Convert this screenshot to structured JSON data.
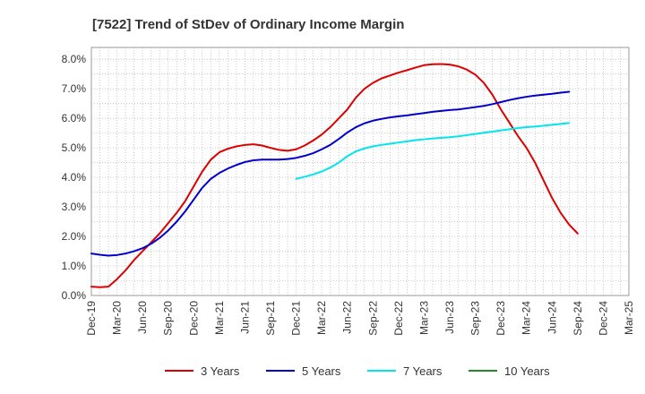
{
  "chart_data": {
    "type": "line",
    "title": "[7522]  Trend of StDev of Ordinary Income Margin",
    "xlabel": "",
    "ylabel": "",
    "x_tick_labels": [
      "Dec-19",
      "Mar-20",
      "Jun-20",
      "Sep-20",
      "Dec-20",
      "Mar-21",
      "Jun-21",
      "Sep-21",
      "Dec-21",
      "Mar-22",
      "Jun-22",
      "Sep-22",
      "Dec-22",
      "Mar-23",
      "Jun-23",
      "Sep-23",
      "Dec-23",
      "Mar-24",
      "Jun-24",
      "Sep-24",
      "Dec-24",
      "Mar-25"
    ],
    "y_tick_labels": [
      "0.0%",
      "1.0%",
      "2.0%",
      "3.0%",
      "4.0%",
      "5.0%",
      "6.0%",
      "7.0%",
      "8.0%"
    ],
    "ylim": [
      0,
      8.4
    ],
    "y_unit": "%",
    "grid": true,
    "legend_position": "bottom",
    "series": [
      {
        "name": "3 Years",
        "color": "#dd0000",
        "points": [
          [
            "Dec-19",
            0.3
          ],
          [
            "Jan-20",
            0.28
          ],
          [
            "Feb-20",
            0.3
          ],
          [
            "Mar-20",
            0.55
          ],
          [
            "Apr-20",
            0.85
          ],
          [
            "May-20",
            1.2
          ],
          [
            "Jun-20",
            1.5
          ],
          [
            "Jul-20",
            1.8
          ],
          [
            "Aug-20",
            2.1
          ],
          [
            "Sep-20",
            2.45
          ],
          [
            "Oct-20",
            2.8
          ],
          [
            "Nov-20",
            3.2
          ],
          [
            "Dec-20",
            3.7
          ],
          [
            "Jan-21",
            4.2
          ],
          [
            "Feb-21",
            4.6
          ],
          [
            "Mar-21",
            4.85
          ],
          [
            "Apr-21",
            4.97
          ],
          [
            "May-21",
            5.05
          ],
          [
            "Jun-21",
            5.1
          ],
          [
            "Jul-21",
            5.12
          ],
          [
            "Aug-21",
            5.08
          ],
          [
            "Sep-21",
            5.0
          ],
          [
            "Oct-21",
            4.93
          ],
          [
            "Nov-21",
            4.9
          ],
          [
            "Dec-21",
            4.95
          ],
          [
            "Jan-22",
            5.08
          ],
          [
            "Feb-22",
            5.25
          ],
          [
            "Mar-22",
            5.45
          ],
          [
            "Apr-22",
            5.7
          ],
          [
            "May-22",
            6.0
          ],
          [
            "Jun-22",
            6.3
          ],
          [
            "Jul-22",
            6.7
          ],
          [
            "Aug-22",
            7.0
          ],
          [
            "Sep-22",
            7.2
          ],
          [
            "Oct-22",
            7.35
          ],
          [
            "Nov-22",
            7.45
          ],
          [
            "Dec-22",
            7.55
          ],
          [
            "Jan-23",
            7.63
          ],
          [
            "Feb-23",
            7.72
          ],
          [
            "Mar-23",
            7.8
          ],
          [
            "Apr-23",
            7.83
          ],
          [
            "May-23",
            7.84
          ],
          [
            "Jun-23",
            7.82
          ],
          [
            "Jul-23",
            7.76
          ],
          [
            "Aug-23",
            7.65
          ],
          [
            "Sep-23",
            7.48
          ],
          [
            "Oct-23",
            7.2
          ],
          [
            "Nov-23",
            6.8
          ],
          [
            "Dec-23",
            6.3
          ],
          [
            "Jan-24",
            5.85
          ],
          [
            "Feb-24",
            5.4
          ],
          [
            "Mar-24",
            5.0
          ],
          [
            "Apr-24",
            4.5
          ],
          [
            "May-24",
            3.9
          ],
          [
            "Jun-24",
            3.3
          ],
          [
            "Jul-24",
            2.8
          ],
          [
            "Aug-24",
            2.4
          ],
          [
            "Sep-24",
            2.1
          ]
        ]
      },
      {
        "name": "5 Years",
        "color": "#0000cc",
        "points": [
          [
            "Dec-19",
            1.42
          ],
          [
            "Jan-20",
            1.38
          ],
          [
            "Feb-20",
            1.35
          ],
          [
            "Mar-20",
            1.37
          ],
          [
            "Apr-20",
            1.42
          ],
          [
            "May-20",
            1.5
          ],
          [
            "Jun-20",
            1.6
          ],
          [
            "Jul-20",
            1.75
          ],
          [
            "Aug-20",
            1.95
          ],
          [
            "Sep-20",
            2.2
          ],
          [
            "Oct-20",
            2.5
          ],
          [
            "Nov-20",
            2.85
          ],
          [
            "Dec-20",
            3.25
          ],
          [
            "Jan-21",
            3.65
          ],
          [
            "Feb-21",
            3.95
          ],
          [
            "Mar-21",
            4.15
          ],
          [
            "Apr-21",
            4.3
          ],
          [
            "May-21",
            4.42
          ],
          [
            "Jun-21",
            4.52
          ],
          [
            "Jul-21",
            4.58
          ],
          [
            "Aug-21",
            4.6
          ],
          [
            "Sep-21",
            4.6
          ],
          [
            "Oct-21",
            4.6
          ],
          [
            "Nov-21",
            4.62
          ],
          [
            "Dec-21",
            4.66
          ],
          [
            "Jan-22",
            4.73
          ],
          [
            "Feb-22",
            4.82
          ],
          [
            "Mar-22",
            4.95
          ],
          [
            "Apr-22",
            5.1
          ],
          [
            "May-22",
            5.3
          ],
          [
            "Jun-22",
            5.52
          ],
          [
            "Jul-22",
            5.7
          ],
          [
            "Aug-22",
            5.83
          ],
          [
            "Sep-22",
            5.92
          ],
          [
            "Oct-22",
            5.98
          ],
          [
            "Nov-22",
            6.03
          ],
          [
            "Dec-22",
            6.07
          ],
          [
            "Jan-23",
            6.1
          ],
          [
            "Feb-23",
            6.14
          ],
          [
            "Mar-23",
            6.18
          ],
          [
            "Apr-23",
            6.22
          ],
          [
            "May-23",
            6.25
          ],
          [
            "Jun-23",
            6.28
          ],
          [
            "Jul-23",
            6.3
          ],
          [
            "Aug-23",
            6.34
          ],
          [
            "Sep-23",
            6.38
          ],
          [
            "Oct-23",
            6.42
          ],
          [
            "Nov-23",
            6.48
          ],
          [
            "Dec-23",
            6.55
          ],
          [
            "Jan-24",
            6.62
          ],
          [
            "Feb-24",
            6.68
          ],
          [
            "Mar-24",
            6.73
          ],
          [
            "Apr-24",
            6.77
          ],
          [
            "May-24",
            6.8
          ],
          [
            "Jun-24",
            6.83
          ],
          [
            "Jul-24",
            6.87
          ],
          [
            "Aug-24",
            6.9
          ]
        ]
      },
      {
        "name": "7 Years",
        "color": "#00e5ee",
        "points": [
          [
            "Dec-21",
            3.95
          ],
          [
            "Jan-22",
            4.02
          ],
          [
            "Feb-22",
            4.1
          ],
          [
            "Mar-22",
            4.2
          ],
          [
            "Apr-22",
            4.33
          ],
          [
            "May-22",
            4.5
          ],
          [
            "Jun-22",
            4.72
          ],
          [
            "Jul-22",
            4.88
          ],
          [
            "Aug-22",
            4.98
          ],
          [
            "Sep-22",
            5.05
          ],
          [
            "Oct-22",
            5.1
          ],
          [
            "Nov-22",
            5.14
          ],
          [
            "Dec-22",
            5.18
          ],
          [
            "Jan-23",
            5.22
          ],
          [
            "Feb-23",
            5.26
          ],
          [
            "Mar-23",
            5.29
          ],
          [
            "Apr-23",
            5.32
          ],
          [
            "May-23",
            5.34
          ],
          [
            "Jun-23",
            5.36
          ],
          [
            "Jul-23",
            5.39
          ],
          [
            "Aug-23",
            5.43
          ],
          [
            "Sep-23",
            5.47
          ],
          [
            "Oct-23",
            5.51
          ],
          [
            "Nov-23",
            5.55
          ],
          [
            "Dec-23",
            5.59
          ],
          [
            "Jan-24",
            5.63
          ],
          [
            "Feb-24",
            5.67
          ],
          [
            "Mar-24",
            5.7
          ],
          [
            "Apr-24",
            5.72
          ],
          [
            "May-24",
            5.75
          ],
          [
            "Jun-24",
            5.78
          ],
          [
            "Jul-24",
            5.81
          ],
          [
            "Aug-24",
            5.84
          ]
        ]
      },
      {
        "name": "10 Years",
        "color": "#228b22",
        "points": []
      }
    ]
  }
}
